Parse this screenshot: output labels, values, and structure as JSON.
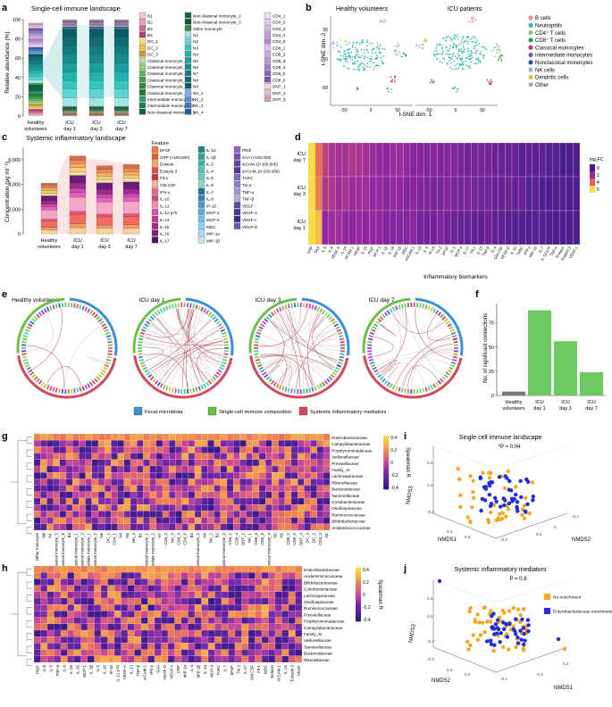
{
  "panels": {
    "a": {
      "letter": "a",
      "title": "Single-cell immune landscape",
      "ylabel": "Relative abundance (%)",
      "yticks": [
        "0",
        "20",
        "40",
        "60",
        "80",
        "100"
      ],
      "xlabels": [
        [
          "Healthy",
          "volunteers"
        ],
        [
          "ICU",
          "day 1"
        ],
        [
          "ICU",
          "day 3"
        ],
        [
          "ICU",
          "day 7"
        ]
      ],
      "legend_col1": [
        "B1",
        "B2",
        "B3",
        "B4",
        "DC_1",
        "DC_2",
        "DC_3",
        "Classical monocyte_1",
        "Classical monocyte_2",
        "Classical monocyte_3",
        "Classical monocyte_4",
        "Classical monocyte_5",
        "Classical monocyte_6",
        "Intermediate monocyte_1",
        "Intermediate monocyte_2",
        "Non-classical monocyte_1"
      ],
      "legend_col2": [
        "Non-classical monocyte_2",
        "Non-classical monocyte_3",
        "Other monocyte",
        "N1",
        "N2",
        "N3",
        "N4",
        "N5",
        "N6",
        "N7",
        "N8",
        "N9",
        "NK_1",
        "NK_2",
        "NK_3",
        "NK_4"
      ],
      "legend_col3": [
        "CD4_1",
        "CD4_2",
        "CD4_3",
        "CD4_4",
        "CD4_5",
        "CD8_1",
        "CD8_2",
        "CD8_3",
        "CD8_4",
        "CD8_5",
        "CD8_6",
        "DNT_1",
        "DNT_2",
        "DNT_3"
      ]
    },
    "b": {
      "letter": "b",
      "title_left": "Healthy volunteers",
      "title_right": "ICU patients",
      "ylabel": "t-SNE dim. 2",
      "xlabel": "t-SNE dim. 1",
      "ticks": [
        "-50",
        "0",
        "50"
      ],
      "legend": [
        {
          "label": "B cells",
          "color": "#e8968a"
        },
        {
          "label": "Neutrophils",
          "color": "#2bb5b0"
        },
        {
          "label": "CD4⁺ T cells",
          "color": "#7fc97f"
        },
        {
          "label": "CD8⁺ T cells",
          "color": "#2a9d4a"
        },
        {
          "label": "Classical monocytes",
          "color": "#c0368b"
        },
        {
          "label": "Intermediate monocytes",
          "color": "#7e57c2"
        },
        {
          "label": "Nonclassical monocytes",
          "color": "#3949ab"
        },
        {
          "label": "NK cells",
          "color": "#8ab4f8"
        },
        {
          "label": "Dendritic cells",
          "color": "#d4c64a"
        },
        {
          "label": "Other",
          "color": "#aaaaaa"
        }
      ]
    },
    "c": {
      "letter": "c",
      "title": "Systemic inflammatory landscape",
      "ylabel": "Concentration (pg ml⁻¹)",
      "yticks": [
        "0",
        "2,000",
        "4,000",
        "6,000"
      ],
      "xlabels": [
        [
          "Healthy",
          "volunteers"
        ],
        [
          "ICU",
          "day 1"
        ],
        [
          "ICU",
          "day 3"
        ],
        [
          "ICU",
          "day 7"
        ]
      ],
      "feature_label": "Feature",
      "legend_col1": [
        "bFGF",
        "CRP (×100,000)",
        "Eotaxin",
        "Eotaxin.3",
        "Flt-1",
        "GM.CSF",
        "IFN-γ",
        "IL-10",
        "IL-12",
        "IL-12 p70",
        "IL-13",
        "IL-15",
        "IL-16",
        "IL-17"
      ],
      "legend_col2": [
        "IL-1α",
        "IL-1β",
        "IL-2",
        "IL-4",
        "IL-5",
        "IL-6",
        "IL-7",
        "IL-8",
        "IP-10",
        "MCP-1",
        "MCP-4",
        "MDC",
        "MIP-1α",
        "MIP-1β"
      ],
      "legend_col3": [
        "PlGF",
        "SAA (×100,000)",
        "sICAM.1(×100,000)",
        "sVCAM.1(×100,000)",
        "TARC",
        "Tie-2",
        "TNF-α",
        "TNF-β",
        "VEGF",
        "VEGF-A",
        "VEGF-c",
        "VEGF-D"
      ],
      "chart_data": {
        "type": "bar",
        "categories": [
          "Healthy volunteers",
          "ICU day 1",
          "ICU day 3",
          "ICU day 7"
        ],
        "values": [
          4100,
          6300,
          5500,
          5600
        ],
        "ylim": [
          0,
          7000
        ],
        "ylabel": "Concentration (pg ml⁻¹)"
      }
    },
    "d": {
      "letter": "d",
      "rows": [
        [
          "ICU",
          "day 7"
        ],
        [
          "ICU",
          "day 3"
        ],
        [
          "ICU",
          "day 1"
        ]
      ],
      "xlabel": "Inflammatory biomarkers",
      "legend_title": "log₂FC",
      "legend_values": [
        "0",
        "2",
        "4",
        "6"
      ],
      "biomarkers": [
        "CRP",
        "SAA",
        "IL-6",
        "IL-8",
        "VEGF-A",
        "IL-10",
        "sICAM.1",
        "VEGF",
        "IL-15",
        "PlGF",
        "MCP-1",
        "IL-1β",
        "IL-16",
        "MIP-1β",
        "MDC",
        "sVCAM.1",
        "IL-12",
        "IL-5",
        "IP-10",
        "Tie-2",
        "bFGF",
        "IL-2",
        "MCP-4",
        "IL-17",
        "Flt-1",
        "IL-13",
        "TNF-β",
        "IL-4",
        "GM.CSF",
        "VEGF-D",
        "IL-1α",
        "TARC",
        "IFN-γ",
        "MIP-1α",
        "IL-7",
        "IL-12 p70",
        "TNF-α",
        "Eotaxin",
        "Eotaxin.3",
        "VEGF-c"
      ]
    },
    "e": {
      "letter": "e",
      "titles": [
        "Healthy volunteers",
        "ICU day 1",
        "ICU day 3",
        "ICU day 7"
      ],
      "legend": [
        {
          "label": "Fecal microbiota",
          "color": "#3b8fd9"
        },
        {
          "label": "Single-cell immune composition",
          "color": "#6cc04a"
        },
        {
          "label": "Systemic inflammatory mediators",
          "color": "#d04a5e"
        }
      ]
    },
    "f": {
      "letter": "f",
      "ylabel": "No. of significant connections",
      "yticks": [
        "0",
        "25",
        "50",
        "75"
      ],
      "chart_data": {
        "type": "bar",
        "categories": [
          "Healthy volunteers",
          "ICU day 1",
          "ICU day 3",
          "ICU day 7"
        ],
        "values": [
          4,
          88,
          56,
          24
        ],
        "colors": [
          "#777777",
          "#6cc960",
          "#6cc960",
          "#6cc960"
        ],
        "ylim": [
          0,
          95
        ],
        "ylabel": "No. of significant connections"
      },
      "xlabels": [
        [
          "Healthy",
          "volunteers"
        ],
        [
          "ICU",
          "day 1"
        ],
        [
          "ICU",
          "day 3"
        ],
        [
          "ICU",
          "day 7"
        ]
      ]
    },
    "g": {
      "letter": "g",
      "rows": [
        "Enterobacteriaceae",
        "Campylobacteraceae",
        "Porphyromonadaceae",
        "Veillonellaceae",
        "Prevotellaceae",
        "Family_XI",
        "Lachnospiraceae",
        "Rikenellaceae",
        "Bacteroidaceae",
        "Tannerellaceae",
        "Coriobacteriaceae",
        "Oscillospiraceae",
        "Ruminococcaceae",
        "Bifidobacteriaceae",
        "Acidaminococcaceae"
      ],
      "cols": [
        "Other monocyte",
        "N8",
        "N1",
        "Classical monocyte_5",
        "Classical monocyte_6",
        "B4",
        "Non-classical monocyte_1",
        "Classical monocyte_3",
        "Intermediate monocyte_1",
        "Non-classical monocyte_2",
        "N6",
        "DC_1",
        "CD4_1",
        "N4",
        "N5",
        "NK_4",
        "B1",
        "Classical monocyte_1",
        "Intermediate monocyte_2",
        "N7",
        "CD4_3",
        "NK_3",
        "CD4_4",
        "CD4_5",
        "B3",
        "Classical monocyte_3",
        "N9",
        "NK_2",
        "B2",
        "Non-classical monocyte_2",
        "CD8_1",
        "CD8_4",
        "DNT_2",
        "NK_1",
        "CD8_3",
        "CD8_5",
        "Classical monocyte_4",
        "N2",
        "N3",
        "CD8_2",
        "CD8_6",
        "DNT_3",
        "DC_3",
        "DC_2",
        "CD4_2",
        "N1"
      ],
      "scale_label": "Spearman R",
      "scale_ticks": [
        "0.4",
        "0.2",
        "0",
        "-0.2",
        "-0.4"
      ]
    },
    "h": {
      "letter": "h",
      "rows": [
        "Enterobacteriaceae",
        "Acidaminococcaceae",
        "Bifidobacteriaceae",
        "Coriobacteriaceae",
        "Lachnospiraceae",
        "Oscillospiraceae",
        "Ruminococcaceae",
        "Prevotellaceae",
        "Porphyromonadaceae",
        "Campylobacteraceae",
        "Family_XI",
        "Veillonellaceae",
        "Tannerellaceae",
        "Bacteroidaceae",
        "Rikenellaceae"
      ],
      "cols": [
        "PlGF",
        "IL-8",
        "IL-5",
        "TNF-α",
        "IL-6",
        "IL-15",
        "IL-16",
        "MCP-1",
        "IL-1β",
        "IL-2",
        "IL-10",
        "IP-10",
        "IL-12 p70",
        "VEGF-A",
        "IL-13",
        "TNF-β",
        "sICAM.1",
        "IFN-γ",
        "SAA",
        "VEGF-D",
        "VEGF-c",
        "CRP",
        "MIP-1α",
        "IL-4",
        "MIP-1β",
        "IL-1α",
        "MCP-4",
        "TARC",
        "IL-7",
        "bFGF",
        "Tie-2",
        "IL-17",
        "GM.CSF",
        "Flt-1",
        "MDC",
        "Eotaxin",
        "sVCAM.1",
        "IL-12",
        "Eotaxin.3",
        "VEGF"
      ],
      "scale_label": "Spearman R",
      "scale_ticks": [
        "0.4",
        "0.2",
        "0",
        "-0.2",
        "-0.4"
      ]
    },
    "i": {
      "letter": "i",
      "title": "Single cell immune landscape",
      "pvalue": "*P = 0.04",
      "xlabel": "NMDS1",
      "ylabel": "NMDS3",
      "zlabel": "NMDS2"
    },
    "j": {
      "letter": "j",
      "title": "Systemic inflammatory mediators",
      "pvalue": "P = 0.8",
      "xlabel": "NMDS2",
      "ylabel": "NMDS3",
      "zlabel": "NMDS1",
      "legend": [
        {
          "label": "No enrichment",
          "color": "#f5a623"
        },
        {
          "label": "Enterobacteriaceae enrichment",
          "color": "#1f2fd6"
        }
      ]
    }
  }
}
